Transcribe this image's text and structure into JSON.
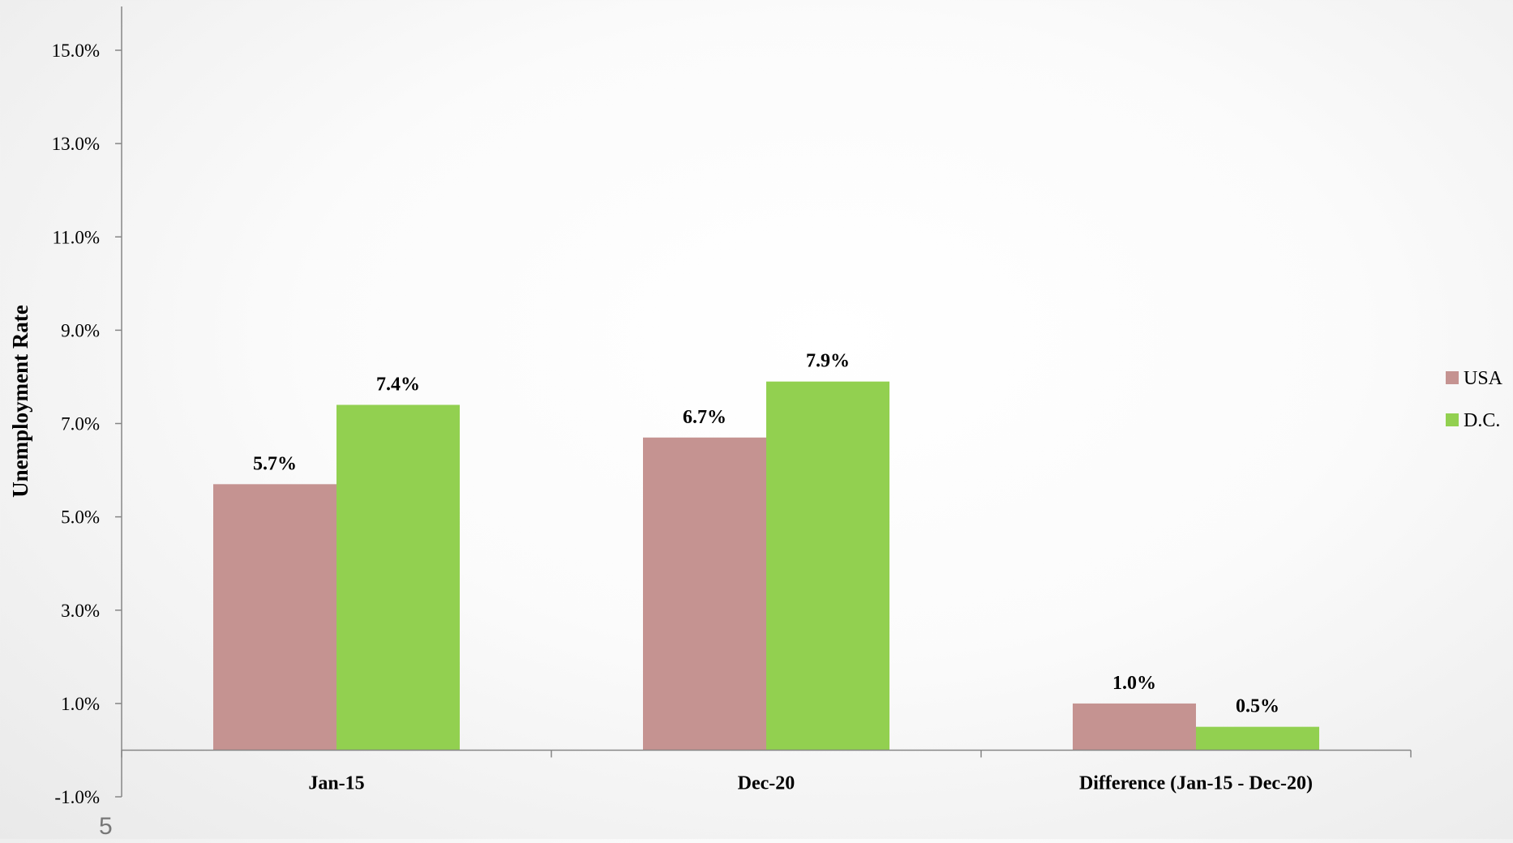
{
  "slide_number": "5",
  "colors": {
    "usa": "#c59391",
    "dc": "#92d050",
    "axis": "#868686"
  },
  "chart_data": {
    "type": "bar",
    "title": "",
    "xlabel": "",
    "ylabel": "Unemployment Rate",
    "ylim": [
      -1.0,
      16.0
    ],
    "yticks": [
      -1.0,
      1.0,
      3.0,
      5.0,
      7.0,
      9.0,
      11.0,
      13.0,
      15.0
    ],
    "ytick_labels": [
      "-1.0%",
      "1.0%",
      "3.0%",
      "5.0%",
      "7.0%",
      "9.0%",
      "11.0%",
      "13.0%",
      "15.0%"
    ],
    "categories": [
      "Jan-15",
      "Dec-20",
      "Difference (Jan-15 - Dec-20)"
    ],
    "series": [
      {
        "name": "USA",
        "values": [
          5.7,
          6.7,
          1.0
        ],
        "labels": [
          "5.7%",
          "6.7%",
          "1.0%"
        ]
      },
      {
        "name": "D.C.",
        "values": [
          7.4,
          7.9,
          0.5
        ],
        "labels": [
          "7.4%",
          "7.9%",
          "0.5%"
        ]
      }
    ],
    "grid": false,
    "legend_position": "right"
  }
}
